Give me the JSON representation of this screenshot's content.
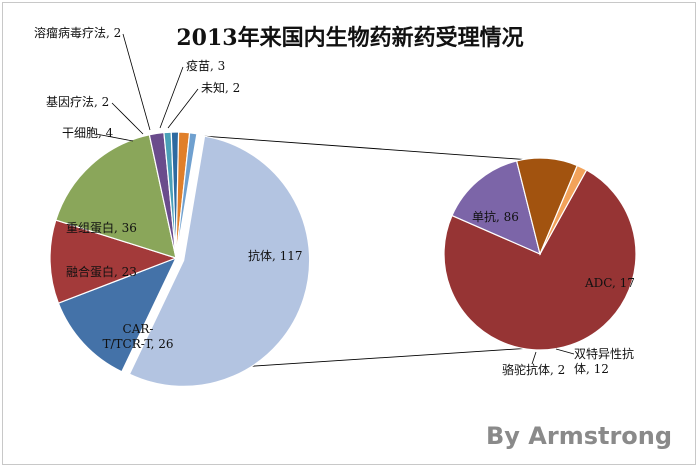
{
  "watermark": "By Armstrong",
  "chart_data": [
    {
      "type": "pie",
      "title": "2013年来国内生物药新药受理情况",
      "categories": [
        "抗体",
        "CAR-T/TCR-T",
        "融合蛋白",
        "重组蛋白",
        "干细胞",
        "基因疗法",
        "溶瘤病毒疗法",
        "疫苗",
        "未知"
      ],
      "values": [
        117,
        26,
        23,
        36,
        4,
        2,
        2,
        3,
        2
      ],
      "labels": [
        "抗体, 117",
        "CAR-\nT/TCR-T, 26",
        "融合蛋白, 23",
        "重组蛋白, 36",
        "干细胞, 4",
        "基因疗法, 2",
        "溶瘤病毒疗法, 2",
        "疫苗, 3",
        "未知, 2"
      ],
      "colors": [
        "#b3c4e1",
        "#4472a8",
        "#a33a3a",
        "#8aa65a",
        "#6a4c8c",
        "#4aa0b8",
        "#2e6aa0",
        "#e07f2a",
        "#6fa0cf"
      ],
      "exploded": "抗体"
    },
    {
      "type": "pie",
      "parent": "抗体",
      "categories": [
        "单抗",
        "ADC",
        "双特异性抗体",
        "骆驼抗体"
      ],
      "values": [
        86,
        17,
        12,
        2
      ],
      "labels": [
        "单抗, 86",
        "ADC, 17",
        "双特异性抗\n体, 12",
        "骆驼抗体, 2"
      ],
      "colors": [
        "#963434",
        "#7c65a8",
        "#a2530f",
        "#f2a25a"
      ]
    }
  ]
}
